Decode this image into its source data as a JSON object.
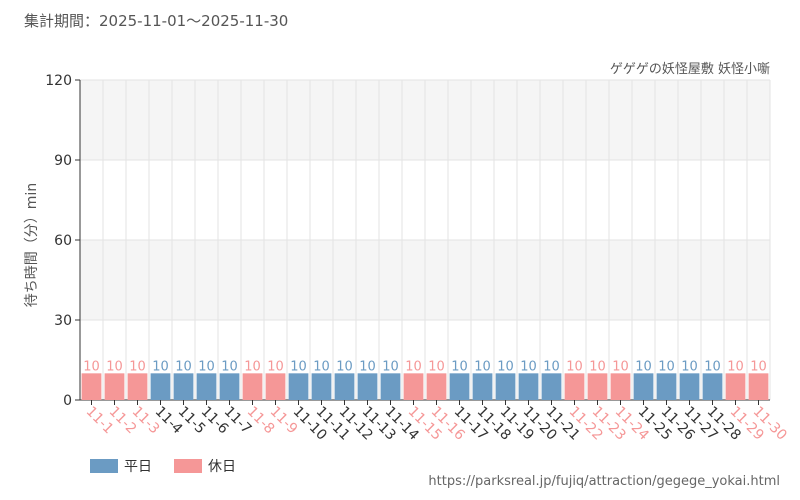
{
  "header": {
    "period": "集計期間：2025-11-01～2025-11-30",
    "attraction": "ゲゲゲの妖怪屋敷 妖怪小噺"
  },
  "legend": {
    "weekday": "平日",
    "holiday": "休日"
  },
  "footer": {
    "source_url": "https://parksreal.jp/fujiq/attraction/gegege_yokai.html"
  },
  "colors": {
    "weekday": "#6b9bc3",
    "holiday": "#f59797",
    "band": "#f5f5f5",
    "grid": "#e3e3e3",
    "axis": "#333333"
  },
  "chart_data": {
    "type": "bar",
    "ylabel": "待ち時間（分）min",
    "ylim": [
      0,
      120
    ],
    "yticks": [
      0,
      30,
      60,
      90,
      120
    ],
    "grid": true,
    "legend_position": "bottom-left",
    "categories": [
      "11-1",
      "11-2",
      "11-3",
      "11-4",
      "11-5",
      "11-6",
      "11-7",
      "11-8",
      "11-9",
      "11-10",
      "11-11",
      "11-12",
      "11-13",
      "11-14",
      "11-15",
      "11-16",
      "11-17",
      "11-18",
      "11-19",
      "11-20",
      "11-21",
      "11-22",
      "11-23",
      "11-24",
      "11-25",
      "11-26",
      "11-27",
      "11-28",
      "11-29",
      "11-30"
    ],
    "values": [
      10,
      10,
      10,
      10,
      10,
      10,
      10,
      10,
      10,
      10,
      10,
      10,
      10,
      10,
      10,
      10,
      10,
      10,
      10,
      10,
      10,
      10,
      10,
      10,
      10,
      10,
      10,
      10,
      10,
      10
    ],
    "day_type": [
      "holiday",
      "holiday",
      "holiday",
      "weekday",
      "weekday",
      "weekday",
      "weekday",
      "holiday",
      "holiday",
      "weekday",
      "weekday",
      "weekday",
      "weekday",
      "weekday",
      "holiday",
      "holiday",
      "weekday",
      "weekday",
      "weekday",
      "weekday",
      "weekday",
      "holiday",
      "holiday",
      "holiday",
      "weekday",
      "weekday",
      "weekday",
      "weekday",
      "holiday",
      "holiday"
    ]
  }
}
